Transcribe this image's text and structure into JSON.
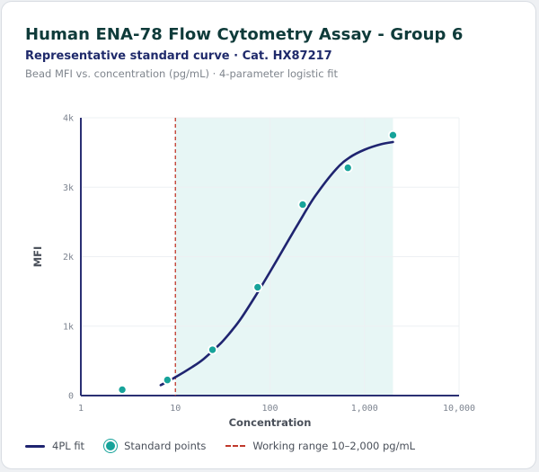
{
  "header": {
    "title": "Human ENA-78 Flow Cytometry Assay - Group 6",
    "subtitle": "Representative standard curve · Cat. HX87217",
    "caption": "Bead MFI vs. concentration (pg/mL) · 4-parameter logistic fit"
  },
  "chart_data": {
    "type": "scatter",
    "xlabel": "Concentration",
    "ylabel": "MFI",
    "xscale": "log",
    "xlim": [
      1,
      10000
    ],
    "ylim": [
      0,
      4000
    ],
    "xticks": [
      1,
      10,
      100,
      1000,
      10000
    ],
    "xtick_labels": [
      "1",
      "10",
      "100",
      "1,000",
      "10,000"
    ],
    "yticks": [
      0,
      1000,
      2000,
      3000,
      4000
    ],
    "ytick_labels": [
      "0",
      "1k",
      "2k",
      "3k",
      "4k"
    ],
    "grid": true,
    "legend_position": "bottom-left",
    "series": [
      {
        "name": "Standard points",
        "kind": "scatter",
        "color": "#17a39a",
        "x": [
          2.74,
          8.23,
          24.7,
          74.1,
          222,
          667,
          2000
        ],
        "y": [
          85,
          225,
          660,
          1560,
          2750,
          3280,
          3750
        ]
      },
      {
        "name": "4PL fit",
        "kind": "line",
        "color": "#1f2470",
        "x": [
          7,
          10,
          15,
          20,
          30,
          40,
          50,
          70,
          100,
          150,
          200,
          300,
          500,
          700,
          1000,
          1500,
          2000
        ],
        "y": [
          150,
          265,
          410,
          530,
          750,
          945,
          1120,
          1430,
          1780,
          2190,
          2480,
          2870,
          3260,
          3430,
          3540,
          3620,
          3650
        ]
      }
    ],
    "working_range": {
      "name": "Working range 10–2,000 pg/mL",
      "from": 10,
      "to": 2000,
      "line_color": "#c0392b",
      "fill_color": "#e7f6f5"
    }
  }
}
